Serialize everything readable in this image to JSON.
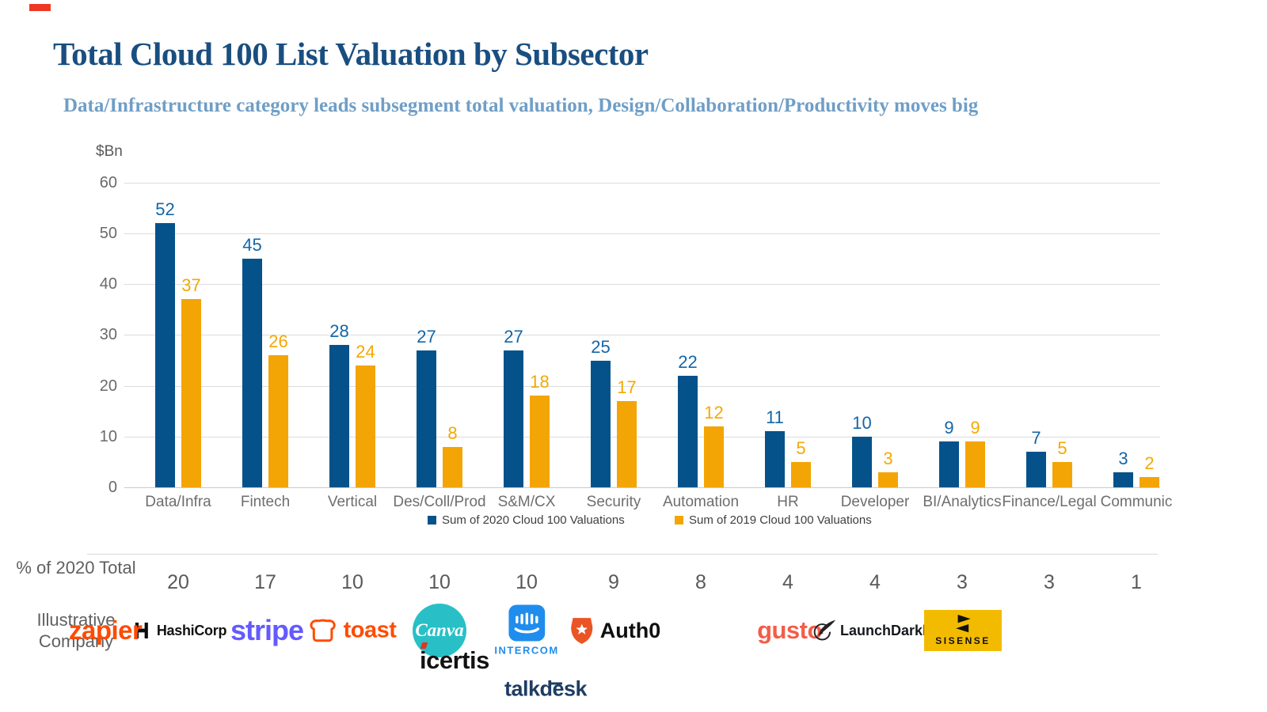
{
  "header": {
    "title": "Total Cloud 100 List Valuation by Subsector",
    "subtitle": "Data/Infrastructure category leads subsegment total valuation, Design/Collaboration/Productivity moves big"
  },
  "chart_data": {
    "type": "bar",
    "title": "Total Cloud 100 List Valuation by Subsector",
    "subtitle": "Data/Infrastructure category leads subsegment total valuation, Design/Collaboration/Productivity moves big",
    "xlabel": "",
    "ylabel": "$Bn",
    "ylim": [
      0,
      60
    ],
    "y_ticks": [
      0,
      10,
      20,
      30,
      40,
      50,
      60
    ],
    "grid": true,
    "legend_position": "bottom",
    "categories": [
      "Data/Infra",
      "Fintech",
      "Vertical",
      "Des/Coll/Prod",
      "S&M/CX",
      "Security",
      "Automation",
      "HR",
      "Developer",
      "BI/Analytics",
      "Finance/Legal",
      "Communic"
    ],
    "series": [
      {
        "name": "Sum of 2020 Cloud 100 Valuations",
        "color": "#05528A",
        "label_color": "#1366A8",
        "values": [
          52,
          45,
          28,
          27,
          27,
          25,
          22,
          11,
          10,
          9,
          7,
          3
        ]
      },
      {
        "name": "Sum of 2019 Cloud 100 Valuations",
        "color": "#F3A505",
        "label_color": "#F5A800",
        "values": [
          37,
          26,
          24,
          8,
          18,
          17,
          12,
          5,
          3,
          9,
          5,
          2
        ]
      }
    ]
  },
  "summary": {
    "label": "% of 2020 Total",
    "values": [
      20,
      17,
      10,
      10,
      10,
      9,
      8,
      4,
      4,
      3,
      3,
      1
    ]
  },
  "companies": {
    "label": "Illustrative Company"
  },
  "logos": {
    "hashicorp": {
      "text": "HashiCorp",
      "color": "#121212"
    },
    "stripe": {
      "text": "stripe",
      "color": "#635BFF"
    },
    "toast": {
      "text": "toast",
      "color": "#FF4C00"
    },
    "canva": {
      "text": "Canva",
      "color": "#28C0C6"
    },
    "intercom": {
      "text": "INTERCOM",
      "color": "#1F8DED"
    },
    "auth0": {
      "text": "Auth0",
      "shield_color": "#EB5424"
    },
    "zapier": {
      "text": "zapier",
      "asterisk": "*",
      "color": "#FF4A00"
    },
    "gusto": {
      "text": "gusto",
      "color": "#F45D48"
    },
    "launchdarkly": {
      "text": "LaunchDarkly",
      "color": "#15191E"
    },
    "sisense": {
      "text": "SISENSE",
      "bg": "#F3BB00"
    },
    "icertis": {
      "text": "icertis",
      "accent_color": "#E23425"
    },
    "talkdesk": {
      "text": "talkdesk",
      "color": "#1F3D63"
    }
  }
}
